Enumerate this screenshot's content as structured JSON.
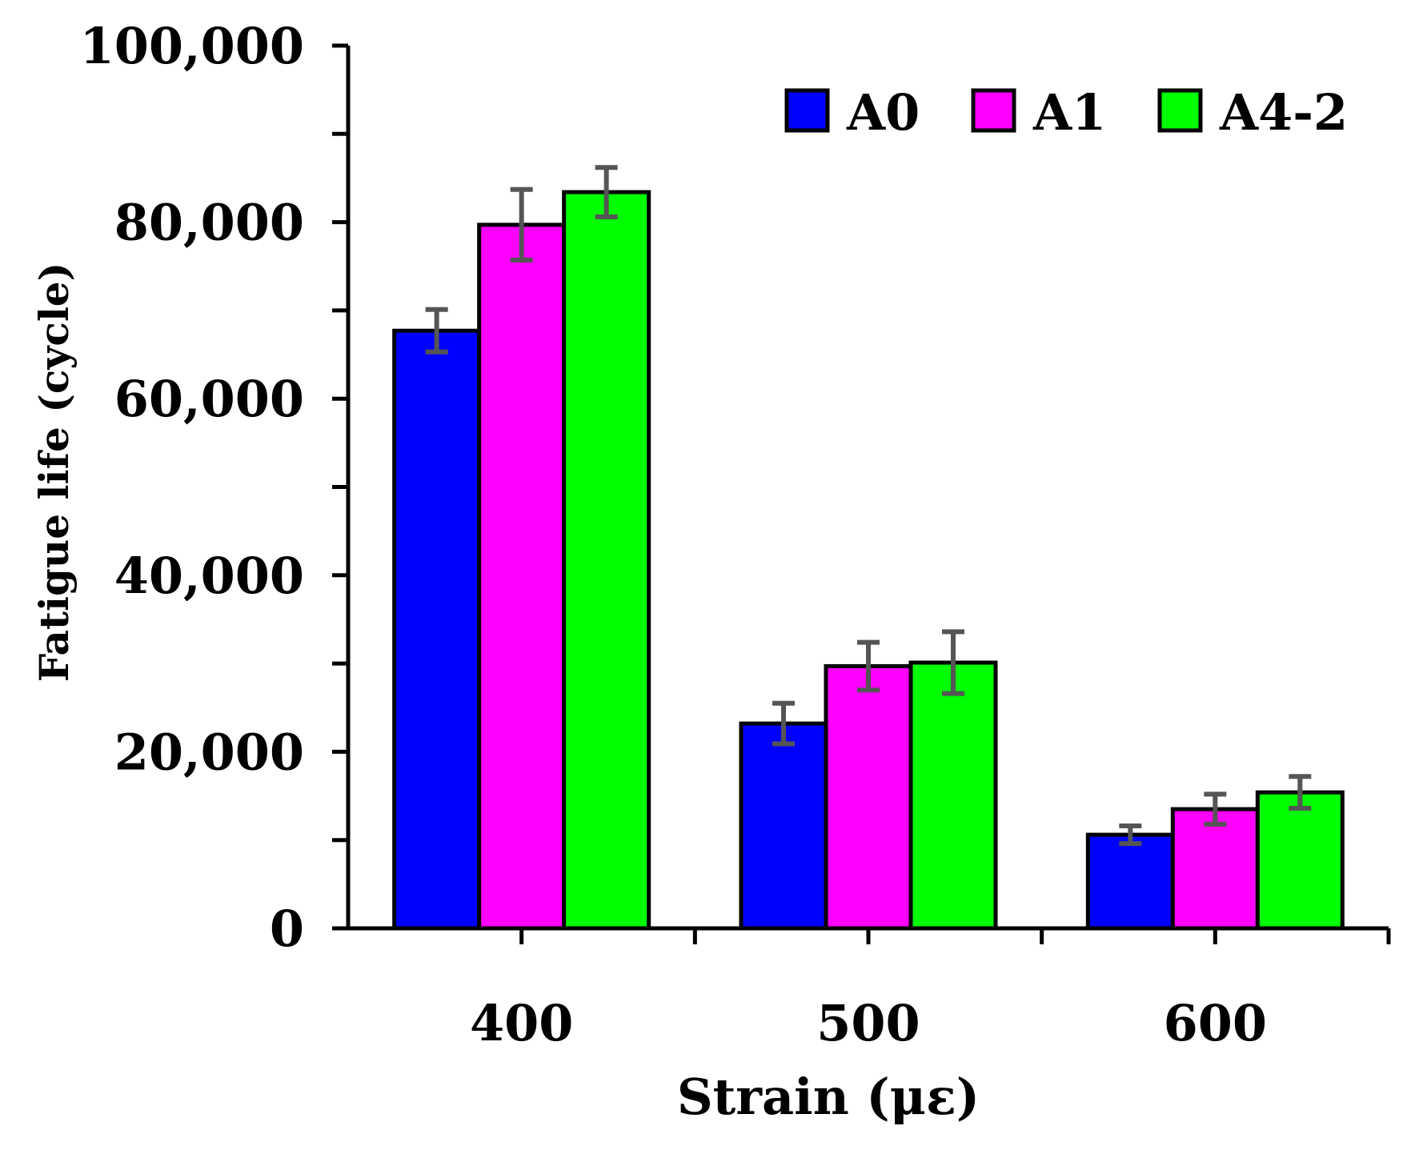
{
  "chart_data": {
    "type": "bar",
    "title": "",
    "xlabel": "Strain (με)",
    "ylabel": "Fatigue life (cycle)",
    "categories": [
      "400",
      "500",
      "600"
    ],
    "ylim": [
      0,
      100000
    ],
    "y_major_ticks": [
      0,
      20000,
      40000,
      60000,
      80000,
      100000
    ],
    "y_tick_labels": [
      "0",
      "20,000",
      "40,000",
      "60,000",
      "80,000",
      "100,000"
    ],
    "y_minor_step": 10000,
    "grid": false,
    "legend_position": "top-right",
    "series": [
      {
        "name": "A0",
        "color": "#0000FF",
        "values": [
          67700,
          23200,
          10600
        ],
        "errors": [
          2400,
          2300,
          1000
        ]
      },
      {
        "name": "A1",
        "color": "#FF00FF",
        "values": [
          79700,
          29700,
          13500
        ],
        "errors": [
          4000,
          2700,
          1700
        ]
      },
      {
        "name": "A4-2",
        "color": "#00FF00",
        "values": [
          83400,
          30100,
          15400
        ],
        "errors": [
          2800,
          3500,
          1800
        ]
      }
    ],
    "error_bar_color": "#555555"
  }
}
